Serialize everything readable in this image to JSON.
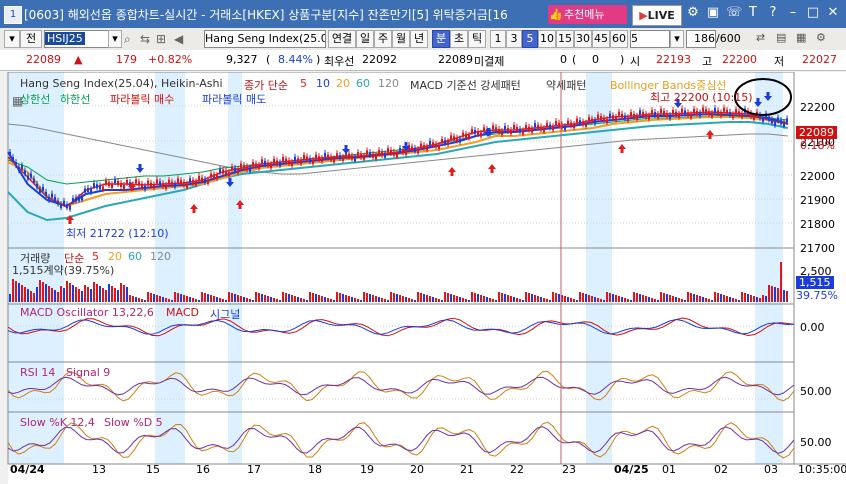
{
  "title": {
    "window_num": "1",
    "text": "[0603] 해외선옵 종합차트-실시간 - 거래소[HKEX] 상품구분[지수] 잔존만기[5] 위탁증거금[16"
  },
  "title_buttons": {
    "recommend": "추천메뉴",
    "live": "LIVE",
    "icons": [
      "settings-icon",
      "lock-icon",
      "phone-icon",
      "t-icon",
      "help-icon",
      "minimize-icon",
      "maximize-icon",
      "close-icon"
    ]
  },
  "toolbar1": {
    "mode": "전",
    "code": "HSIJ25",
    "product_name": "Hang Seng Index(25.0",
    "tabs": [
      "연결",
      "일",
      "주",
      "월",
      "년",
      "분",
      "초",
      "틱"
    ],
    "selected_tab": "분",
    "periods": [
      "1",
      "3",
      "5",
      "10",
      "15",
      "30",
      "45",
      "60"
    ],
    "selected_period": "5",
    "period_input": "5",
    "count": "186",
    "count_total": "/600"
  },
  "quote": {
    "last": "22089",
    "change": "179",
    "change_pct": "+0.82%",
    "volume": "9,327",
    "vol_pct": "8.44%",
    "best_bid_label": "최우선",
    "best_bid": "22092",
    "best_ask": "22089",
    "unfilled_label": "미결제",
    "unfilled": "0",
    "unfilled_change": "0",
    "open_label": "시",
    "open": "22193",
    "high_label": "고",
    "high": "22200",
    "low_label": "저",
    "low": "22027"
  },
  "legend": {
    "main_title": "Hang Seng Index(25.04), Heikin-Ashi",
    "ma_label": "종가 단순",
    "ma_periods": [
      "5",
      "10",
      "20",
      "60",
      "120"
    ],
    "macd_pattern": "MACD 기준선 강세패턴",
    "weak_pattern": "약세패턴",
    "bb_label": "Bollinger Bands중심선",
    "bb_upper": "상한선",
    "bb_lower": "하한선",
    "sar_buy": "파라볼릭 매수",
    "sar_sell": "파라볼릭 매도",
    "high_annotation": "최고 22200 (10:15)",
    "low_annotation": "최저 21722 (12:10)"
  },
  "price_axis": {
    "ticks": [
      "22200",
      "22100",
      "22000",
      "21900",
      "21800",
      "21700"
    ],
    "current": "22089",
    "current_pct": "0.18%"
  },
  "volume_panel": {
    "title": "거래량",
    "ma_label": "단순",
    "ma_periods": [
      "5",
      "20",
      "60",
      "120"
    ],
    "info": "1,515계약(39.75%)",
    "ticks": [
      "2,500"
    ],
    "current": "1,515",
    "current_pct": "39.75%"
  },
  "macd_panel": {
    "title": "MACD Oscillator 13,22,6",
    "macd": "MACD",
    "signal": "시그널",
    "ticks": [
      "0.00"
    ]
  },
  "rsi_panel": {
    "title": "RSI 14",
    "signal": "Signal 9",
    "ticks": [
      "50.00"
    ]
  },
  "stoch_panel": {
    "title": "Slow %K 12,4",
    "signal": "Slow %D 5",
    "ticks": [
      "50.00"
    ]
  },
  "x_axis": {
    "labels": [
      "04/24",
      "13",
      "15",
      "16",
      "17",
      "18",
      "19",
      "20",
      "21",
      "22",
      "23",
      "04/25",
      "01",
      "02",
      "03",
      "10"
    ],
    "time": "10:35:00"
  },
  "colors": {
    "candle": "#e0141e",
    "down_candle": "#1a3cdb",
    "ma5": "#e01e1e",
    "ma10": "#1a3cdb",
    "ma20": "#f0a020",
    "ma60": "#2aa8b8",
    "ma120": "#888888",
    "bb": "#00a050",
    "highlight": "#ddf0ff"
  }
}
